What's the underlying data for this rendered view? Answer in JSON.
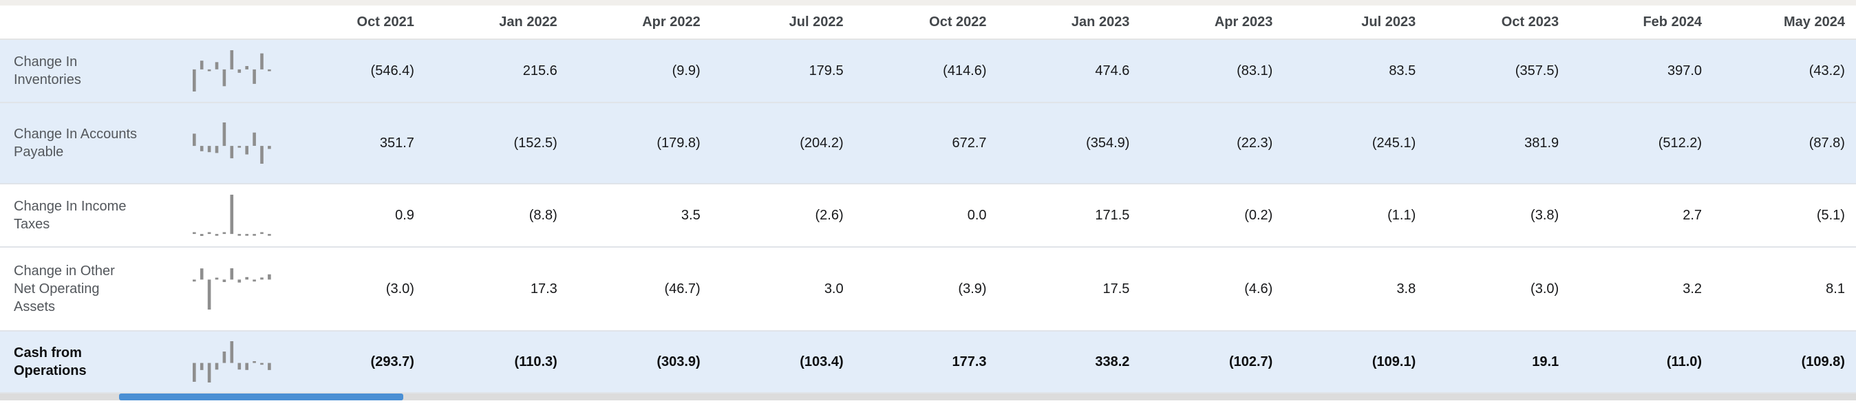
{
  "table": {
    "columns": [
      "Oct 2021",
      "Jan 2022",
      "Apr 2022",
      "Jul 2022",
      "Oct 2022",
      "Jan 2023",
      "Apr 2023",
      "Jul 2023",
      "Oct 2023",
      "Feb 2024",
      "May 2024"
    ],
    "rows": [
      {
        "label": "Change In Inventories",
        "highlighted": true,
        "bold": false,
        "cells": [
          "(546.4)",
          "215.6",
          "(9.9)",
          "179.5",
          "(414.6)",
          "474.6",
          "(83.1)",
          "83.5",
          "(357.5)",
          "397.0",
          "(43.2)"
        ],
        "values": [
          -546.4,
          215.6,
          -9.9,
          179.5,
          -414.6,
          474.6,
          -83.1,
          83.5,
          -357.5,
          397.0,
          -43.2
        ]
      },
      {
        "label": "Change In Accounts Payable",
        "highlighted": true,
        "bold": false,
        "cells": [
          "351.7",
          "(152.5)",
          "(179.8)",
          "(204.2)",
          "672.7",
          "(354.9)",
          "(22.3)",
          "(245.1)",
          "381.9",
          "(512.2)",
          "(87.8)"
        ],
        "values": [
          351.7,
          -152.5,
          -179.8,
          -204.2,
          672.7,
          -354.9,
          -22.3,
          -245.1,
          381.9,
          -512.2,
          -87.8
        ]
      },
      {
        "label": "Change In Income Taxes",
        "highlighted": false,
        "bold": false,
        "cells": [
          "0.9",
          "(8.8)",
          "3.5",
          "(2.6)",
          "0.0",
          "171.5",
          "(0.2)",
          "(1.1)",
          "(3.8)",
          "2.7",
          "(5.1)"
        ],
        "values": [
          0.9,
          -8.8,
          3.5,
          -2.6,
          0.0,
          171.5,
          -0.2,
          -1.1,
          -3.8,
          2.7,
          -5.1
        ]
      },
      {
        "label": "Change in Other Net Operating Assets",
        "highlighted": false,
        "bold": false,
        "cells": [
          "(3.0)",
          "17.3",
          "(46.7)",
          "3.0",
          "(3.9)",
          "17.5",
          "(4.6)",
          "3.8",
          "(3.0)",
          "3.2",
          "8.1"
        ],
        "values": [
          -3.0,
          17.3,
          -46.7,
          3.0,
          -3.9,
          17.5,
          -4.6,
          3.8,
          -3.0,
          3.2,
          8.1
        ]
      },
      {
        "label": "Cash from Operations",
        "highlighted": true,
        "bold": true,
        "cells": [
          "(293.7)",
          "(110.3)",
          "(303.9)",
          "(103.4)",
          "177.3",
          "338.2",
          "(102.7)",
          "(109.1)",
          "19.1",
          "(11.0)",
          "(109.8)"
        ],
        "values": [
          -293.7,
          -110.3,
          -303.9,
          -103.4,
          177.3,
          338.2,
          -102.7,
          -109.1,
          19.1,
          -11.0,
          -109.8
        ]
      }
    ]
  },
  "colors": {
    "row_highlight": "#e3edf9",
    "spark_bar": "#8e8e8e",
    "scrollbar_track": "#dcdcdc",
    "scrollbar_thumb": "#4a8fd4",
    "header_text": "#43474b",
    "label_text": "#53575c",
    "value_text": "#17181a"
  }
}
